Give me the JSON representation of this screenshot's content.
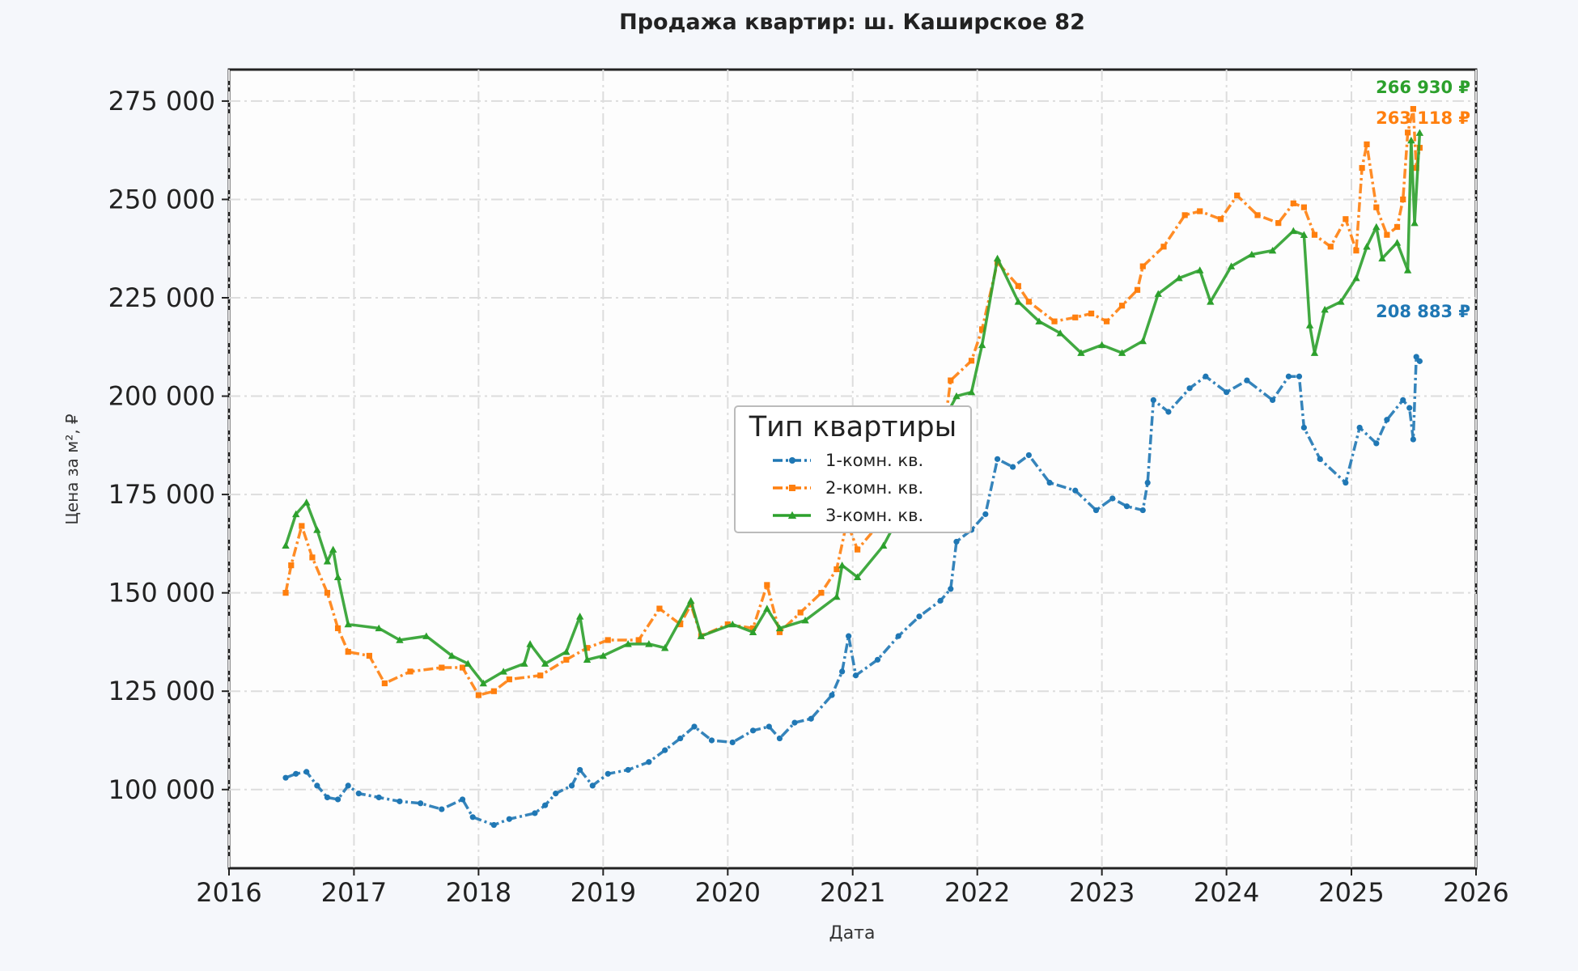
{
  "chart_data": {
    "type": "line",
    "title": "Продажа квартир: ш. Каширское 82",
    "xlabel": "Дата",
    "ylabel": "Цена за м², ₽",
    "xlim": [
      "2016-01-01",
      "2026-01-01"
    ],
    "ylim": [
      80000,
      283000
    ],
    "x_ticks": [
      "2016",
      "2017",
      "2018",
      "2019",
      "2020",
      "2021",
      "2022",
      "2023",
      "2024",
      "2025",
      "2026"
    ],
    "y_ticks": [
      100000,
      125000,
      150000,
      175000,
      200000,
      225000,
      250000,
      275000
    ],
    "y_tick_labels": [
      "100 000",
      "125 000",
      "150 000",
      "175 000",
      "200 000",
      "225 000",
      "250 000",
      "275 000"
    ],
    "grid": true,
    "legend": {
      "title": "Тип квартиры",
      "placement": "center"
    },
    "series": [
      {
        "name": "1-комн. кв.",
        "color": "#1f77b4",
        "marker": "circle",
        "line_style": "dash-dot",
        "end_label": "208 883 ₽",
        "points": [
          [
            "2016-06-15",
            103000
          ],
          [
            "2016-07-15",
            104000
          ],
          [
            "2016-08-15",
            104500
          ],
          [
            "2016-09-15",
            101000
          ],
          [
            "2016-10-15",
            98000
          ],
          [
            "2016-11-15",
            97500
          ],
          [
            "2016-12-15",
            101000
          ],
          [
            "2017-01-15",
            99000
          ],
          [
            "2017-03-15",
            98000
          ],
          [
            "2017-05-15",
            97000
          ],
          [
            "2017-07-15",
            96500
          ],
          [
            "2017-09-15",
            95000
          ],
          [
            "2017-11-15",
            97500
          ],
          [
            "2017-12-15",
            93000
          ],
          [
            "2018-02-15",
            91000
          ],
          [
            "2018-04-01",
            92500
          ],
          [
            "2018-06-15",
            94000
          ],
          [
            "2018-07-15",
            96000
          ],
          [
            "2018-08-15",
            99000
          ],
          [
            "2018-10-01",
            101000
          ],
          [
            "2018-10-25",
            105000
          ],
          [
            "2018-12-01",
            101000
          ],
          [
            "2019-01-15",
            104000
          ],
          [
            "2019-03-15",
            105000
          ],
          [
            "2019-05-15",
            107000
          ],
          [
            "2019-07-01",
            110000
          ],
          [
            "2019-08-15",
            113000
          ],
          [
            "2019-09-25",
            116000
          ],
          [
            "2019-11-15",
            112500
          ],
          [
            "2020-01-15",
            112000
          ],
          [
            "2020-03-15",
            115000
          ],
          [
            "2020-05-01",
            116000
          ],
          [
            "2020-06-01",
            113000
          ],
          [
            "2020-07-15",
            117000
          ],
          [
            "2020-09-01",
            118000
          ],
          [
            "2020-11-01",
            124000
          ],
          [
            "2020-12-01",
            130000
          ],
          [
            "2020-12-20",
            139000
          ],
          [
            "2021-01-10",
            129000
          ],
          [
            "2021-03-15",
            133000
          ],
          [
            "2021-05-15",
            139000
          ],
          [
            "2021-07-15",
            144000
          ],
          [
            "2021-09-15",
            148000
          ],
          [
            "2021-10-15",
            151000
          ],
          [
            "2021-11-01",
            163000
          ],
          [
            "2021-12-15",
            166000
          ],
          [
            "2022-01-25",
            170000
          ],
          [
            "2022-03-01",
            184000
          ],
          [
            "2022-04-15",
            182000
          ],
          [
            "2022-06-01",
            185000
          ],
          [
            "2022-08-01",
            178000
          ],
          [
            "2022-10-15",
            176000
          ],
          [
            "2022-12-15",
            171000
          ],
          [
            "2023-02-01",
            174000
          ],
          [
            "2023-03-15",
            172000
          ],
          [
            "2023-05-01",
            171000
          ],
          [
            "2023-05-15",
            178000
          ],
          [
            "2023-06-01",
            199000
          ],
          [
            "2023-07-15",
            196000
          ],
          [
            "2023-09-15",
            202000
          ],
          [
            "2023-11-01",
            205000
          ],
          [
            "2024-01-01",
            201000
          ],
          [
            "2024-03-01",
            204000
          ],
          [
            "2024-05-15",
            199000
          ],
          [
            "2024-07-01",
            205000
          ],
          [
            "2024-08-01",
            205000
          ],
          [
            "2024-08-15",
            192000
          ],
          [
            "2024-10-01",
            184000
          ],
          [
            "2024-12-15",
            178000
          ],
          [
            "2025-01-25",
            192000
          ],
          [
            "2025-03-15",
            188000
          ],
          [
            "2025-04-15",
            194000
          ],
          [
            "2025-06-01",
            199000
          ],
          [
            "2025-06-20",
            197000
          ],
          [
            "2025-07-01",
            189000
          ],
          [
            "2025-07-10",
            210000
          ],
          [
            "2025-07-20",
            208883
          ]
        ]
      },
      {
        "name": "2-комн. кв.",
        "color": "#ff7f0e",
        "marker": "square",
        "line_style": "dash-dot",
        "end_label": "263 118 ₽",
        "points": [
          [
            "2016-06-15",
            150000
          ],
          [
            "2016-07-01",
            157000
          ],
          [
            "2016-08-01",
            167000
          ],
          [
            "2016-09-01",
            159000
          ],
          [
            "2016-10-15",
            150000
          ],
          [
            "2016-11-15",
            141000
          ],
          [
            "2016-12-15",
            135000
          ],
          [
            "2017-02-15",
            134000
          ],
          [
            "2017-04-01",
            127000
          ],
          [
            "2017-06-15",
            130000
          ],
          [
            "2017-09-15",
            131000
          ],
          [
            "2017-11-15",
            131000
          ],
          [
            "2018-01-01",
            124000
          ],
          [
            "2018-02-15",
            125000
          ],
          [
            "2018-04-01",
            128000
          ],
          [
            "2018-07-01",
            129000
          ],
          [
            "2018-09-15",
            133000
          ],
          [
            "2018-11-15",
            136000
          ],
          [
            "2019-01-15",
            138000
          ],
          [
            "2019-04-15",
            138000
          ],
          [
            "2019-06-15",
            146000
          ],
          [
            "2019-08-15",
            142000
          ],
          [
            "2019-09-15",
            147000
          ],
          [
            "2019-10-15",
            139000
          ],
          [
            "2020-01-01",
            142000
          ],
          [
            "2020-03-15",
            141000
          ],
          [
            "2020-04-25",
            152000
          ],
          [
            "2020-06-01",
            140000
          ],
          [
            "2020-08-01",
            145000
          ],
          [
            "2020-10-01",
            150000
          ],
          [
            "2020-11-15",
            156000
          ],
          [
            "2020-12-15",
            168000
          ],
          [
            "2021-01-15",
            161000
          ],
          [
            "2021-03-15",
            167000
          ],
          [
            "2021-07-01",
            180000
          ],
          [
            "2021-10-01",
            195000
          ],
          [
            "2021-10-15",
            204000
          ],
          [
            "2021-12-15",
            209000
          ],
          [
            "2022-01-15",
            217000
          ],
          [
            "2022-03-01",
            234000
          ],
          [
            "2022-05-01",
            228000
          ],
          [
            "2022-06-01",
            224000
          ],
          [
            "2022-08-15",
            219000
          ],
          [
            "2022-10-15",
            220000
          ],
          [
            "2022-12-01",
            221000
          ],
          [
            "2023-01-15",
            219000
          ],
          [
            "2023-03-01",
            223000
          ],
          [
            "2023-04-15",
            227000
          ],
          [
            "2023-05-01",
            233000
          ],
          [
            "2023-07-01",
            238000
          ],
          [
            "2023-09-01",
            246000
          ],
          [
            "2023-10-15",
            247000
          ],
          [
            "2023-12-15",
            245000
          ],
          [
            "2024-02-01",
            251000
          ],
          [
            "2024-04-01",
            246000
          ],
          [
            "2024-06-01",
            244000
          ],
          [
            "2024-07-15",
            249000
          ],
          [
            "2024-08-15",
            248000
          ],
          [
            "2024-09-15",
            241000
          ],
          [
            "2024-11-01",
            238000
          ],
          [
            "2024-12-15",
            245000
          ],
          [
            "2025-01-15",
            237000
          ],
          [
            "2025-02-01",
            258000
          ],
          [
            "2025-02-15",
            264000
          ],
          [
            "2025-03-15",
            248000
          ],
          [
            "2025-04-15",
            241000
          ],
          [
            "2025-05-15",
            243000
          ],
          [
            "2025-06-01",
            250000
          ],
          [
            "2025-06-15",
            267000
          ],
          [
            "2025-07-01",
            273000
          ],
          [
            "2025-07-10",
            258000
          ],
          [
            "2025-07-20",
            263118
          ]
        ]
      },
      {
        "name": "3-комн. кв.",
        "color": "#2ca02c",
        "marker": "triangle",
        "line_style": "solid",
        "end_label": "266 930 ₽",
        "points": [
          [
            "2016-06-15",
            162000
          ],
          [
            "2016-07-15",
            170000
          ],
          [
            "2016-08-15",
            173000
          ],
          [
            "2016-09-15",
            166000
          ],
          [
            "2016-10-15",
            158000
          ],
          [
            "2016-11-01",
            161000
          ],
          [
            "2016-11-15",
            154000
          ],
          [
            "2016-12-15",
            142000
          ],
          [
            "2017-03-15",
            141000
          ],
          [
            "2017-05-15",
            138000
          ],
          [
            "2017-08-01",
            139000
          ],
          [
            "2017-10-15",
            134000
          ],
          [
            "2017-12-01",
            132000
          ],
          [
            "2018-01-15",
            127000
          ],
          [
            "2018-03-15",
            130000
          ],
          [
            "2018-05-15",
            132000
          ],
          [
            "2018-06-01",
            137000
          ],
          [
            "2018-07-15",
            132000
          ],
          [
            "2018-09-15",
            135000
          ],
          [
            "2018-10-25",
            144000
          ],
          [
            "2018-11-15",
            133000
          ],
          [
            "2019-01-01",
            134000
          ],
          [
            "2019-03-15",
            137000
          ],
          [
            "2019-05-15",
            137000
          ],
          [
            "2019-07-01",
            136000
          ],
          [
            "2019-09-15",
            148000
          ],
          [
            "2019-10-15",
            139000
          ],
          [
            "2020-01-15",
            142000
          ],
          [
            "2020-03-15",
            140000
          ],
          [
            "2020-04-25",
            146000
          ],
          [
            "2020-06-01",
            141000
          ],
          [
            "2020-08-15",
            143000
          ],
          [
            "2020-11-15",
            149000
          ],
          [
            "2020-12-01",
            157000
          ],
          [
            "2021-01-15",
            154000
          ],
          [
            "2021-04-01",
            162000
          ],
          [
            "2021-06-01",
            172000
          ],
          [
            "2021-09-01",
            190000
          ],
          [
            "2021-11-01",
            200000
          ],
          [
            "2021-12-15",
            201000
          ],
          [
            "2022-01-15",
            213000
          ],
          [
            "2022-03-01",
            235000
          ],
          [
            "2022-05-01",
            224000
          ],
          [
            "2022-07-01",
            219000
          ],
          [
            "2022-09-01",
            216000
          ],
          [
            "2022-11-01",
            211000
          ],
          [
            "2023-01-01",
            213000
          ],
          [
            "2023-03-01",
            211000
          ],
          [
            "2023-05-01",
            214000
          ],
          [
            "2023-06-15",
            226000
          ],
          [
            "2023-08-15",
            230000
          ],
          [
            "2023-10-15",
            232000
          ],
          [
            "2023-11-15",
            224000
          ],
          [
            "2024-01-15",
            233000
          ],
          [
            "2024-03-15",
            236000
          ],
          [
            "2024-05-15",
            237000
          ],
          [
            "2024-07-15",
            242000
          ],
          [
            "2024-08-15",
            241000
          ],
          [
            "2024-09-01",
            218000
          ],
          [
            "2024-09-15",
            211000
          ],
          [
            "2024-10-15",
            222000
          ],
          [
            "2024-12-01",
            224000
          ],
          [
            "2025-01-15",
            230000
          ],
          [
            "2025-02-15",
            238000
          ],
          [
            "2025-03-15",
            243000
          ],
          [
            "2025-04-01",
            235000
          ],
          [
            "2025-05-15",
            239000
          ],
          [
            "2025-06-15",
            232000
          ],
          [
            "2025-06-25",
            265000
          ],
          [
            "2025-07-05",
            244000
          ],
          [
            "2025-07-20",
            266930
          ]
        ]
      }
    ]
  }
}
